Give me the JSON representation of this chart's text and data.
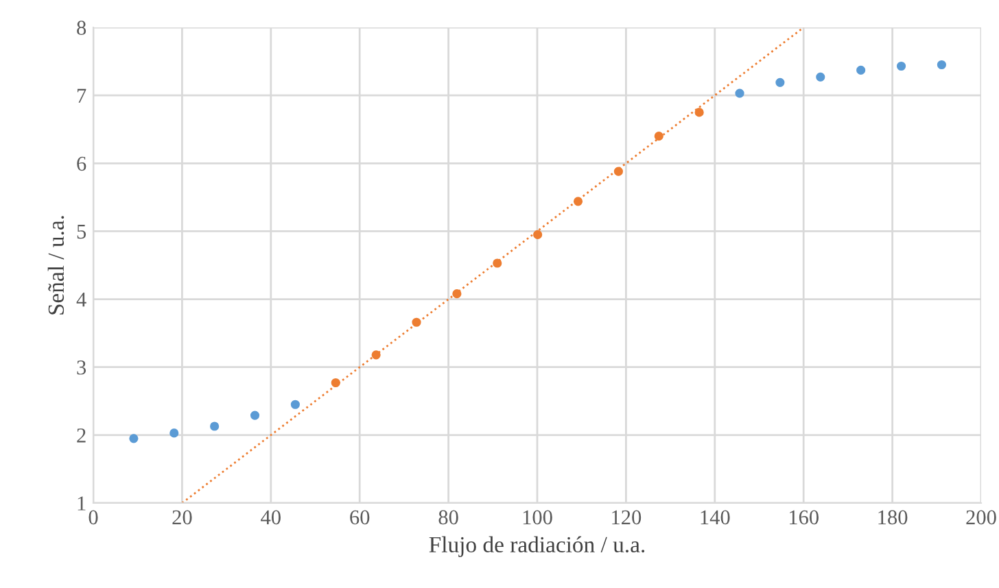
{
  "chart_data": {
    "type": "scatter",
    "xlabel": "Flujo de radiación / u.a.",
    "ylabel": "Señal / u.a.",
    "xlim": [
      0,
      200
    ],
    "ylim": [
      1,
      8
    ],
    "xticks": [
      0,
      20,
      40,
      60,
      80,
      100,
      120,
      140,
      160,
      180,
      200
    ],
    "yticks": [
      1,
      2,
      3,
      4,
      5,
      6,
      7,
      8
    ],
    "grid": true,
    "marker": "circle",
    "series": [
      {
        "color": "#5b9bd5",
        "x": [
          9.1,
          18.2,
          27.3,
          36.4,
          45.5
        ],
        "values": [
          1.95,
          2.03,
          2.13,
          2.29,
          2.45
        ]
      },
      {
        "color": "#ed7d31",
        "x": [
          54.6,
          63.7,
          72.8,
          81.9,
          91.0,
          100.1,
          109.2,
          118.3,
          127.4,
          136.5
        ],
        "values": [
          2.77,
          3.18,
          3.66,
          4.08,
          4.53,
          4.95,
          5.44,
          5.88,
          6.4,
          6.75
        ]
      },
      {
        "color": "#5b9bd5",
        "x": [
          145.6,
          154.7,
          163.8,
          172.9,
          182.0,
          191.1
        ],
        "values": [
          7.03,
          7.19,
          7.27,
          7.37,
          7.43,
          7.45
        ]
      },
      {
        "type": "line",
        "color": "#ed7d31",
        "line_style": "dotted",
        "marker": "none",
        "x": [
          20,
          160
        ],
        "values": [
          1,
          8
        ]
      }
    ]
  }
}
